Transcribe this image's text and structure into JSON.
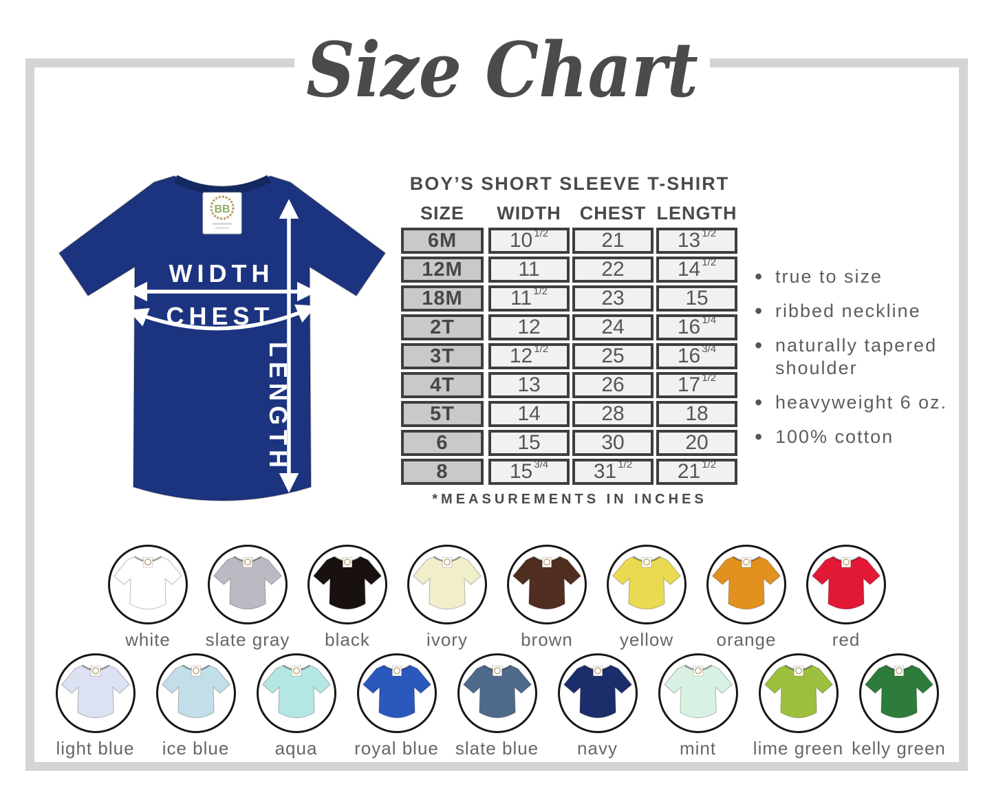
{
  "title": "Size Chart",
  "diagram": {
    "width_label": "WIDTH",
    "chest_label": "CHEST",
    "length_label": "LENGTH",
    "tag_text": "BB",
    "shirt_color": "#1c3480",
    "collar_color": "#13295f",
    "tag_ring_color": "#b89a5c"
  },
  "chart_data": {
    "type": "table",
    "title": "BOY’S SHORT SLEEVE T-SHIRT",
    "columns": [
      "SIZE",
      "WIDTH",
      "CHEST",
      "LENGTH"
    ],
    "rows": [
      {
        "size": "6M",
        "width": "10 1/2",
        "chest": "21",
        "length": "13 1/2"
      },
      {
        "size": "12M",
        "width": "11",
        "chest": "22",
        "length": "14 1/2"
      },
      {
        "size": "18M",
        "width": "11 1/2",
        "chest": "23",
        "length": "15"
      },
      {
        "size": "2T",
        "width": "12",
        "chest": "24",
        "length": "16 1/4"
      },
      {
        "size": "3T",
        "width": "12 1/2",
        "chest": "25",
        "length": "16 3/4"
      },
      {
        "size": "4T",
        "width": "13",
        "chest": "26",
        "length": "17 1/2"
      },
      {
        "size": "5T",
        "width": "14",
        "chest": "28",
        "length": "18"
      },
      {
        "size": "6",
        "width": "15",
        "chest": "30",
        "length": "20"
      },
      {
        "size": "8",
        "width": "15 3/4",
        "chest": "31 1/2",
        "length": "21 1/2"
      }
    ],
    "footnote": "*MEASUREMENTS IN INCHES"
  },
  "features": [
    "true to size",
    "ribbed neckline",
    "naturally tapered shoulder",
    "heavyweight 6 oz.",
    "100% cotton"
  ],
  "swatches": {
    "row1": [
      {
        "name": "white",
        "color": "#ffffff"
      },
      {
        "name": "slate gray",
        "color": "#b9bac2"
      },
      {
        "name": "black",
        "color": "#191110"
      },
      {
        "name": "ivory",
        "color": "#f0eecb"
      },
      {
        "name": "brown",
        "color": "#4f2d20"
      },
      {
        "name": "yellow",
        "color": "#e9da52"
      },
      {
        "name": "orange",
        "color": "#e2911f"
      },
      {
        "name": "red",
        "color": "#e11937"
      }
    ],
    "row2": [
      {
        "name": "light blue",
        "color": "#dde2f3"
      },
      {
        "name": "ice blue",
        "color": "#c2dfe9"
      },
      {
        "name": "aqua",
        "color": "#b4e6e4"
      },
      {
        "name": "royal blue",
        "color": "#2a58bd"
      },
      {
        "name": "slate blue",
        "color": "#4f698a"
      },
      {
        "name": "navy",
        "color": "#1b2d6b"
      },
      {
        "name": "mint",
        "color": "#d8f1e3"
      },
      {
        "name": "lime green",
        "color": "#9dc03c"
      },
      {
        "name": "kelly green",
        "color": "#2d7c3b"
      }
    ]
  },
  "colors": {
    "frame": "#d4d4d4",
    "title_text": "#4b4b4b",
    "table_border": "#3e3e3e",
    "size_cell_bg": "#c9c9c9",
    "value_cell_bg": "#f1f1f1",
    "body_text": "#5d5d5d"
  }
}
